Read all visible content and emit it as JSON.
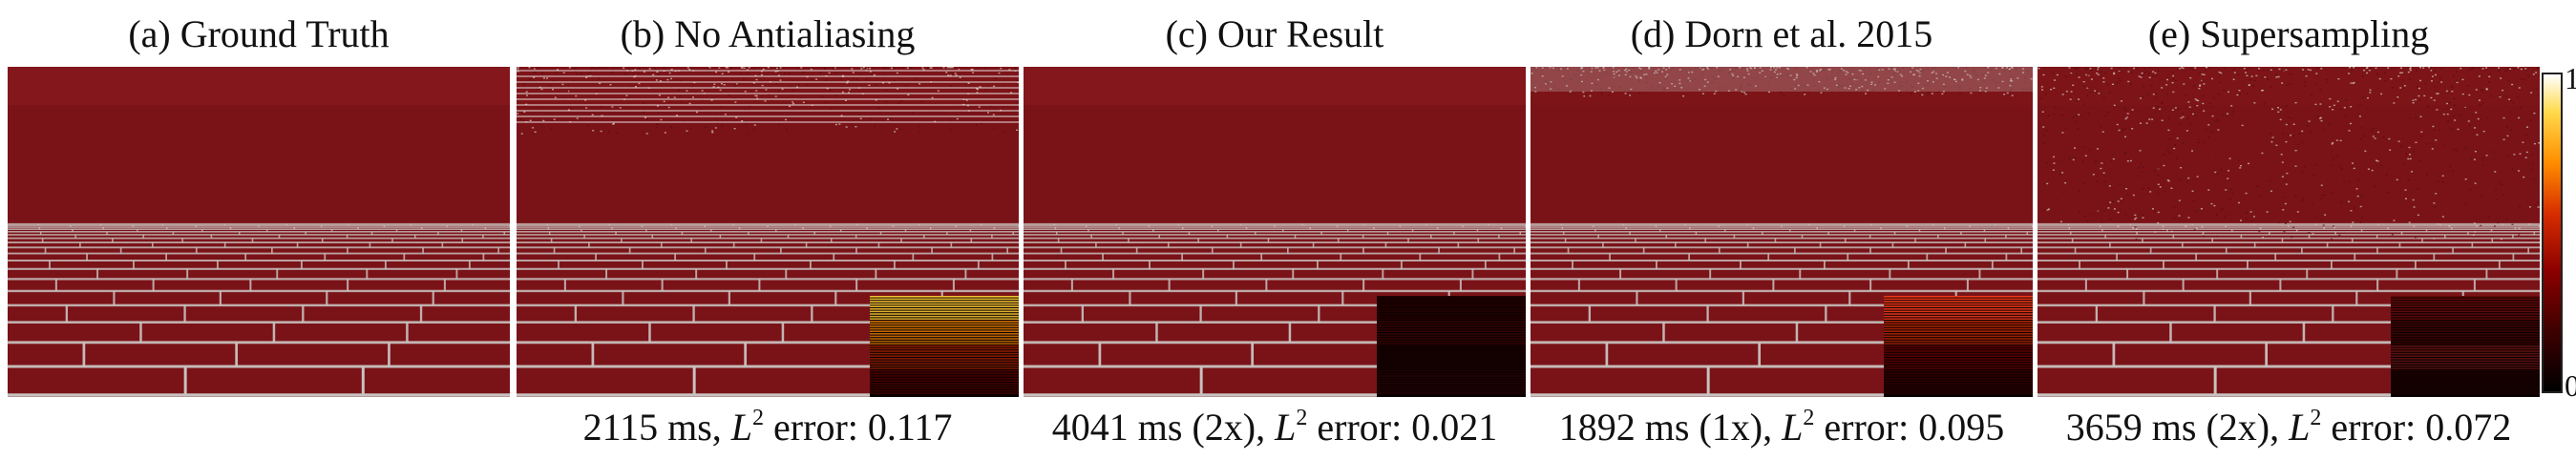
{
  "panels": [
    {
      "title": "(a) Ground Truth",
      "caption_time": "",
      "caption_error": "",
      "has_inset": false,
      "variant": "gt"
    },
    {
      "title": "(b) No Antialiasing",
      "caption_time": "2115 ms, ",
      "caption_error": " error: 0.117",
      "has_inset": true,
      "variant": "noaa"
    },
    {
      "title": "(c) Our Result",
      "caption_time": "4041 ms (2x), ",
      "caption_error": " error: 0.021",
      "has_inset": true,
      "variant": "ours"
    },
    {
      "title": "(d) Dorn et al. 2015",
      "caption_time": "1892 ms (1x), ",
      "caption_error": " error: 0.095",
      "has_inset": true,
      "variant": "dorn"
    },
    {
      "title": "(e) Supersampling",
      "caption_time": "3659 ms (2x), ",
      "caption_error": " error: 0.072",
      "has_inset": true,
      "variant": "ss"
    }
  ],
  "error_symbol": "L",
  "error_exponent": "2",
  "colorbar": {
    "max_label": "1",
    "min_label": "0"
  },
  "colors": {
    "brick": "#7a1318",
    "mortar": "#c9c3c0"
  }
}
